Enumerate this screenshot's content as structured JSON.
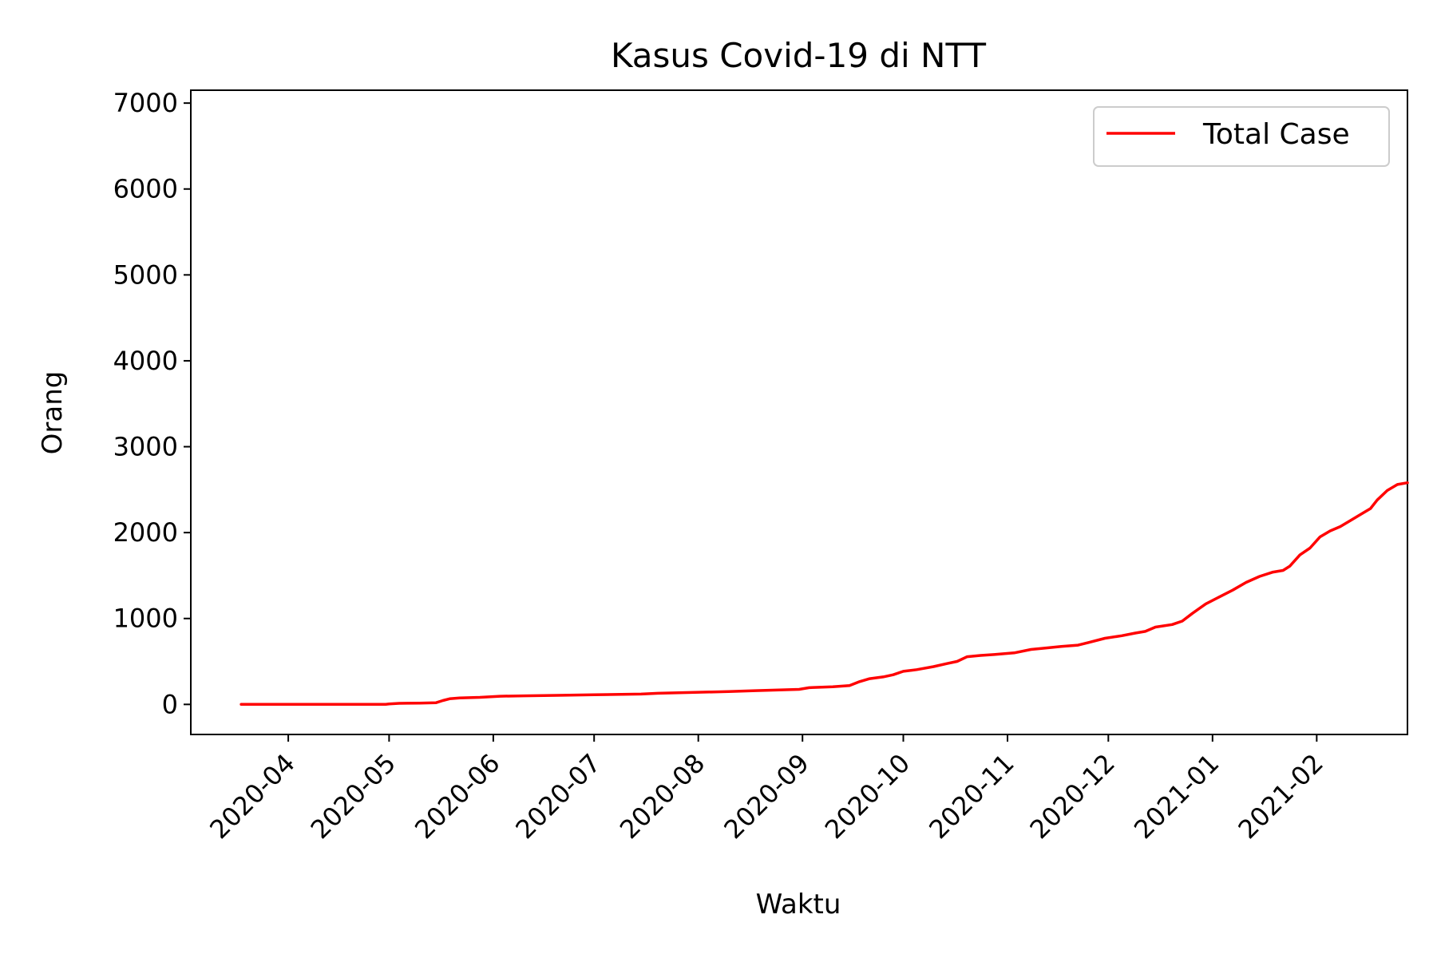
{
  "chart_data": {
    "type": "line",
    "title": "Kasus Covid-19 di NTT",
    "xlabel": "Waktu",
    "ylabel": "Orang",
    "x_ticks": [
      "2020-04",
      "2020-05",
      "2020-06",
      "2020-07",
      "2020-08",
      "2020-09",
      "2020-10",
      "2020-11",
      "2020-12",
      "2021-01",
      "2021-02"
    ],
    "y_ticks": [
      "0",
      "1000",
      "2000",
      "3000",
      "4000",
      "5000",
      "6000",
      "7000"
    ],
    "xlim": [
      "2020-03-03",
      "2021-02-28"
    ],
    "ylim": [
      -350,
      7150
    ],
    "grid": false,
    "legend_position": "top-right",
    "series": [
      {
        "name": "Total Case",
        "color": "#ff0000",
        "points": [
          [
            "2020-03-18",
            0
          ],
          [
            "2020-04-10",
            0
          ],
          [
            "2020-04-30",
            1
          ],
          [
            "2020-05-01",
            5
          ],
          [
            "2020-05-04",
            12
          ],
          [
            "2020-05-10",
            14
          ],
          [
            "2020-05-15",
            20
          ],
          [
            "2020-05-17",
            45
          ],
          [
            "2020-05-19",
            65
          ],
          [
            "2020-05-22",
            75
          ],
          [
            "2020-05-28",
            82
          ],
          [
            "2020-06-03",
            95
          ],
          [
            "2020-06-10",
            100
          ],
          [
            "2020-06-20",
            105
          ],
          [
            "2020-07-01",
            112
          ],
          [
            "2020-07-15",
            120
          ],
          [
            "2020-07-20",
            130
          ],
          [
            "2020-07-31",
            140
          ],
          [
            "2020-08-10",
            150
          ],
          [
            "2020-08-18",
            160
          ],
          [
            "2020-08-31",
            175
          ],
          [
            "2020-09-03",
            195
          ],
          [
            "2020-09-10",
            205
          ],
          [
            "2020-09-15",
            220
          ],
          [
            "2020-09-18",
            265
          ],
          [
            "2020-09-21",
            300
          ],
          [
            "2020-09-25",
            320
          ],
          [
            "2020-09-28",
            345
          ],
          [
            "2020-10-01",
            385
          ],
          [
            "2020-10-05",
            405
          ],
          [
            "2020-10-10",
            440
          ],
          [
            "2020-10-14",
            475
          ],
          [
            "2020-10-17",
            500
          ],
          [
            "2020-10-20",
            555
          ],
          [
            "2020-10-24",
            570
          ],
          [
            "2020-10-28",
            580
          ],
          [
            "2020-11-03",
            600
          ],
          [
            "2020-11-08",
            640
          ],
          [
            "2020-11-12",
            655
          ],
          [
            "2020-11-17",
            675
          ],
          [
            "2020-11-22",
            690
          ],
          [
            "2020-11-25",
            720
          ],
          [
            "2020-11-30",
            770
          ],
          [
            "2020-12-05",
            800
          ],
          [
            "2020-12-09",
            830
          ],
          [
            "2020-12-12",
            850
          ],
          [
            "2020-12-15",
            900
          ],
          [
            "2020-12-20",
            930
          ],
          [
            "2020-12-23",
            970
          ],
          [
            "2020-12-26",
            1060
          ],
          [
            "2020-12-30",
            1170
          ],
          [
            "2021-01-03",
            1250
          ],
          [
            "2021-01-07",
            1330
          ],
          [
            "2021-01-11",
            1420
          ],
          [
            "2021-01-15",
            1490
          ],
          [
            "2021-01-19",
            1540
          ],
          [
            "2021-01-22",
            1560
          ],
          [
            "2021-01-24",
            1610
          ],
          [
            "2021-01-27",
            1740
          ],
          [
            "2021-01-30",
            1820
          ],
          [
            "2021-02-02",
            1950
          ],
          [
            "2021-02-05",
            2020
          ],
          [
            "2021-02-08",
            2070
          ],
          [
            "2021-02-11",
            2140
          ],
          [
            "2021-02-14",
            2210
          ],
          [
            "2021-02-17",
            2280
          ],
          [
            "2021-02-19",
            2380
          ],
          [
            "2021-02-22",
            2490
          ],
          [
            "2021-02-25",
            2560
          ],
          [
            "2021-02-28",
            2580
          ]
        ]
      }
    ]
  }
}
